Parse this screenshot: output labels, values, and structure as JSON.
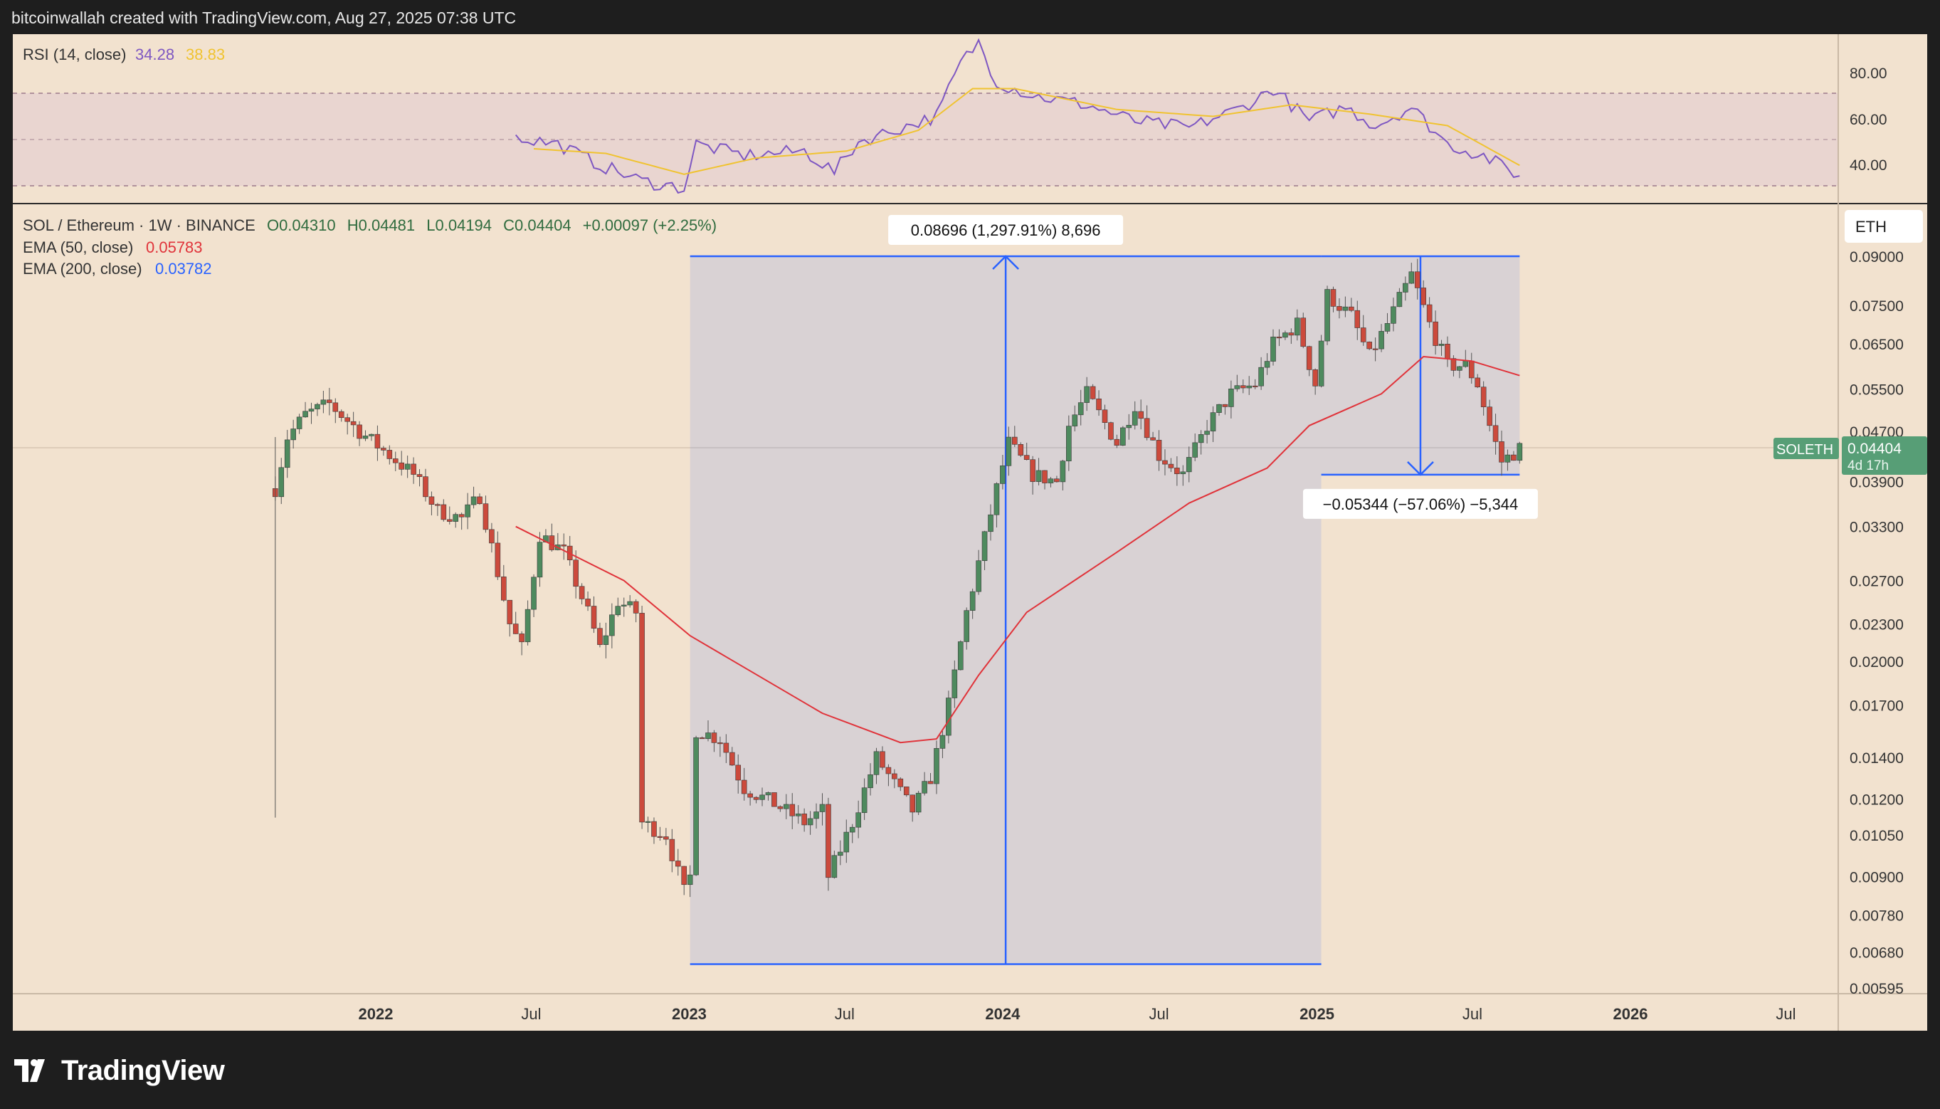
{
  "header": {
    "caption": "bitcoinwallah created with TradingView.com, Aug 27, 2025 07:38 UTC"
  },
  "footer": {
    "brand": "TradingView"
  },
  "colors": {
    "background": "#f2e2cf",
    "candle_up": "#4e8a5e",
    "candle_down": "#cc4a3c",
    "ema50": "#e0333a",
    "ema200": "#2962ff",
    "rsi_line": "#7e57c2",
    "rsi_ma": "#f0c330",
    "measure": "#2962ff",
    "last_price_badge": "#579e76"
  },
  "rsi_panel": {
    "title": "RSI (14, close)",
    "value1": "34.28",
    "value2": "38.83",
    "ticks": [
      "80.00",
      "60.00",
      "40.00"
    ]
  },
  "main_panel": {
    "symbol_line": "SOL / Ethereum · 1W · BINANCE",
    "ohlc": {
      "open": "O0.04310",
      "high": "H0.04481",
      "low": "L0.04194",
      "close": "C0.04404",
      "change": "+0.00097 (+2.25%)"
    },
    "ema50": {
      "label": "EMA (50, close)",
      "value": "0.05783"
    },
    "ema200": {
      "label": "EMA (200, close)",
      "value": "0.03782"
    },
    "currency_button": "ETH",
    "price_ticks": [
      "0.09000",
      "0.07500",
      "0.06500",
      "0.05500",
      "0.04700",
      "0.03900",
      "0.03300",
      "0.02700",
      "0.02300",
      "0.02000",
      "0.01700",
      "0.01400",
      "0.01200",
      "0.01050",
      "0.00900",
      "0.00780",
      "0.00680",
      "0.00595"
    ],
    "last_price": {
      "symbol": "SOLETH",
      "price": "0.04404",
      "countdown": "4d 17h"
    },
    "measure_up_label": "0.08696 (1,297.91%) 8,696",
    "measure_down_label": "−0.05344 (−57.06%) −5,344"
  },
  "time_axis": {
    "labels": [
      "2022",
      "Jul",
      "2023",
      "Jul",
      "2024",
      "Jul",
      "2025",
      "Jul",
      "2026",
      "Jul"
    ]
  },
  "chart_data": {
    "type": "candlestick",
    "title": "SOL / Ethereum · 1W · BINANCE",
    "y_scale": "log",
    "ylim": [
      0.00595,
      0.09
    ],
    "x_range": [
      "2021-09",
      "2026-09"
    ],
    "series": [
      {
        "name": "SOL / Ethereum",
        "anchors": [
          [
            "2021-09-06",
            0.038
          ],
          [
            "2021-09-20",
            0.046
          ],
          [
            "2021-10-11",
            0.05
          ],
          [
            "2021-11-08",
            0.052
          ],
          [
            "2021-12-13",
            0.047
          ],
          [
            "2022-01-17",
            0.043
          ],
          [
            "2022-02-14",
            0.04
          ],
          [
            "2022-03-14",
            0.035
          ],
          [
            "2022-04-11",
            0.034
          ],
          [
            "2022-05-02",
            0.037
          ],
          [
            "2022-06-06",
            0.023
          ],
          [
            "2022-06-20",
            0.021
          ],
          [
            "2022-07-11",
            0.032
          ],
          [
            "2022-08-08",
            0.03
          ],
          [
            "2022-09-05",
            0.024
          ],
          [
            "2022-09-19",
            0.021
          ],
          [
            "2022-10-10",
            0.025
          ],
          [
            "2022-10-31",
            0.024
          ],
          [
            "2022-11-07",
            0.011
          ],
          [
            "2022-12-05",
            0.0105
          ],
          [
            "2022-12-26",
            0.0085
          ],
          [
            "2023-01-02",
            0.009
          ],
          [
            "2023-01-09",
            0.0155
          ],
          [
            "2023-02-06",
            0.015
          ],
          [
            "2023-03-06",
            0.0125
          ],
          [
            "2023-04-10",
            0.0118
          ],
          [
            "2023-05-15",
            0.011
          ],
          [
            "2023-06-05",
            0.0115
          ],
          [
            "2023-06-12",
            0.009
          ],
          [
            "2023-07-10",
            0.011
          ],
          [
            "2023-08-07",
            0.014
          ],
          [
            "2023-09-18",
            0.0115
          ],
          [
            "2023-10-09",
            0.013
          ],
          [
            "2023-10-30",
            0.017
          ],
          [
            "2023-11-20",
            0.024
          ],
          [
            "2023-12-25",
            0.038
          ],
          [
            "2024-01-08",
            0.045
          ],
          [
            "2024-02-05",
            0.04
          ],
          [
            "2024-03-04",
            0.039
          ],
          [
            "2024-03-18",
            0.048
          ],
          [
            "2024-04-08",
            0.054
          ],
          [
            "2024-05-13",
            0.045
          ],
          [
            "2024-06-03",
            0.052
          ],
          [
            "2024-07-01",
            0.043
          ],
          [
            "2024-07-29",
            0.04
          ],
          [
            "2024-08-26",
            0.048
          ],
          [
            "2024-09-23",
            0.054
          ],
          [
            "2024-10-21",
            0.056
          ],
          [
            "2024-11-11",
            0.065
          ],
          [
            "2024-12-09",
            0.07
          ],
          [
            "2024-12-30",
            0.056
          ],
          [
            "2025-01-13",
            0.078
          ],
          [
            "2025-02-10",
            0.072
          ],
          [
            "2025-03-03",
            0.062
          ],
          [
            "2025-03-24",
            0.07
          ],
          [
            "2025-04-21",
            0.084
          ],
          [
            "2025-05-12",
            0.07
          ],
          [
            "2025-06-02",
            0.06
          ],
          [
            "2025-06-23",
            0.06
          ],
          [
            "2025-07-07",
            0.056
          ],
          [
            "2025-07-21",
            0.048
          ],
          [
            "2025-08-04",
            0.042
          ],
          [
            "2025-08-25",
            0.04404
          ]
        ]
      },
      {
        "name": "EMA (50, close)",
        "anchors": [
          [
            "2022-06-13",
            0.033
          ],
          [
            "2022-10-17",
            0.027
          ],
          [
            "2023-01-02",
            0.022
          ],
          [
            "2023-06-05",
            0.0165
          ],
          [
            "2023-09-04",
            0.0148
          ],
          [
            "2023-10-16",
            0.015
          ],
          [
            "2023-12-04",
            0.019
          ],
          [
            "2024-01-29",
            0.024
          ],
          [
            "2024-05-13",
            0.03
          ],
          [
            "2024-08-05",
            0.036
          ],
          [
            "2024-11-04",
            0.041
          ],
          [
            "2024-12-23",
            0.048
          ],
          [
            "2025-03-17",
            0.054
          ],
          [
            "2025-05-05",
            0.062
          ],
          [
            "2025-06-30",
            0.061
          ],
          [
            "2025-08-25",
            0.0578
          ]
        ]
      }
    ],
    "rsi": {
      "name": "RSI (14, close)",
      "ylim": [
        20,
        100
      ],
      "levels": [
        70,
        50,
        30
      ],
      "values": [
        [
          "2022-06-13",
          51
        ],
        [
          "2022-08-01",
          48
        ],
        [
          "2022-09-19",
          39
        ],
        [
          "2022-11-07",
          32
        ],
        [
          "2022-12-26",
          29
        ],
        [
          "2023-01-09",
          48
        ],
        [
          "2023-03-06",
          43
        ],
        [
          "2023-05-15",
          45
        ],
        [
          "2023-06-19",
          36
        ],
        [
          "2023-07-17",
          49
        ],
        [
          "2023-09-04",
          55
        ],
        [
          "2023-10-16",
          60
        ],
        [
          "2023-11-13",
          83
        ],
        [
          "2023-12-04",
          92
        ],
        [
          "2023-12-25",
          75
        ],
        [
          "2024-02-05",
          69
        ],
        [
          "2024-04-08",
          65
        ],
        [
          "2024-06-03",
          58
        ],
        [
          "2024-08-05",
          55
        ],
        [
          "2024-10-07",
          64
        ],
        [
          "2024-11-11",
          72
        ],
        [
          "2024-12-23",
          58
        ],
        [
          "2025-02-03",
          64
        ],
        [
          "2025-03-10",
          56
        ],
        [
          "2025-04-21",
          64
        ],
        [
          "2025-06-02",
          48
        ],
        [
          "2025-07-14",
          43
        ],
        [
          "2025-08-25",
          34.28
        ]
      ],
      "ma_values": [
        [
          "2022-07-04",
          46
        ],
        [
          "2022-09-26",
          44
        ],
        [
          "2022-12-26",
          35
        ],
        [
          "2023-03-20",
          42
        ],
        [
          "2023-07-03",
          45
        ],
        [
          "2023-09-25",
          54
        ],
        [
          "2023-11-27",
          72
        ],
        [
          "2024-01-15",
          72
        ],
        [
          "2024-05-13",
          63
        ],
        [
          "2024-09-02",
          60
        ],
        [
          "2024-12-02",
          65
        ],
        [
          "2025-03-03",
          61
        ],
        [
          "2025-06-02",
          56
        ],
        [
          "2025-08-25",
          38.83
        ]
      ]
    },
    "measurements": [
      {
        "from_date": "2023-01-02",
        "to_date": "2025-01-06",
        "low": 0.0065,
        "high": 0.09,
        "label": "0.08696 (1,297.91%) 8,696"
      },
      {
        "from_date": "2025-01-06",
        "to_date": "2025-08-25",
        "low": 0.04,
        "high": 0.09,
        "label": "−0.05344 (−57.06%) −5,344"
      }
    ]
  }
}
